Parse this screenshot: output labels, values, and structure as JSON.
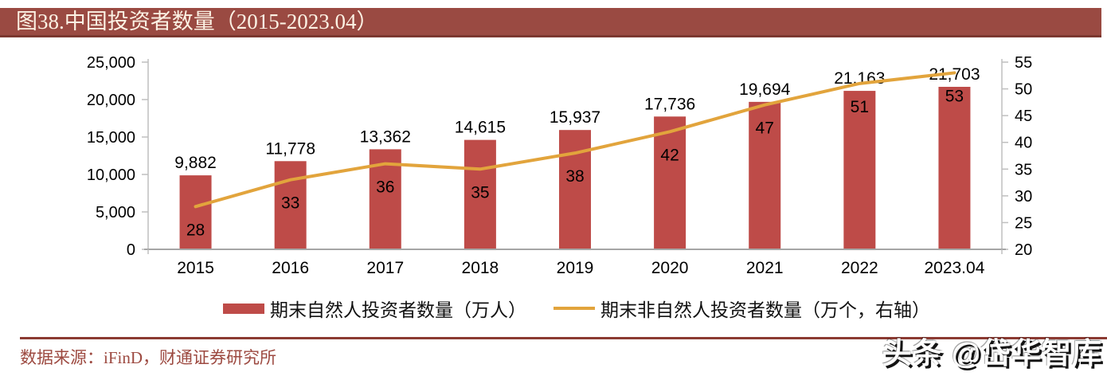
{
  "title": {
    "label": "图38.中国投资者数量（2015-2023.04）"
  },
  "colors": {
    "title_bar_bg": "#9a4a42",
    "title_bar_shadow": "#7b372f",
    "title_text": "#fcf2e4",
    "bar": "#be4b48",
    "line": "#e2a43c",
    "axis_line": "#bfbfbf",
    "x_axis_line": "#a6a6a6",
    "data_label": "#000000",
    "separator": "#8b3a32",
    "source_text": "#9d4a41"
  },
  "chart_data": {
    "type": "bar",
    "subtype": "bar+line dual axis",
    "title": "图38.中国投资者数量（2015-2023.04）",
    "categories": [
      "2015",
      "2016",
      "2017",
      "2018",
      "2019",
      "2020",
      "2021",
      "2022",
      "2023.04"
    ],
    "series": [
      {
        "name": "期末自然人投资者数量（万人）",
        "type": "bar",
        "axis": "left",
        "values": [
          9882,
          11778,
          13362,
          14615,
          15937,
          17736,
          19694,
          21163,
          21703
        ],
        "labels": [
          "9,882",
          "11,778",
          "13,362",
          "14,615",
          "15,937",
          "17,736",
          "19,694",
          "21,163",
          "21,703"
        ]
      },
      {
        "name": "期末非自然人投资者数量（万个，右轴）",
        "type": "line",
        "axis": "right",
        "values": [
          28,
          33,
          36,
          35,
          38,
          42,
          47,
          51,
          53
        ],
        "labels": [
          "28",
          "33",
          "36",
          "35",
          "38",
          "42",
          "47",
          "51",
          "53"
        ]
      }
    ],
    "left_axis": {
      "min": 0,
      "max": 25000,
      "step": 5000,
      "tick_labels": [
        "0",
        "5,000",
        "10,000",
        "15,000",
        "20,000",
        "25,000"
      ]
    },
    "right_axis": {
      "min": 20,
      "max": 55,
      "step": 5,
      "tick_labels": [
        "20",
        "25",
        "30",
        "35",
        "40",
        "45",
        "50",
        "55"
      ]
    },
    "grid": false,
    "legend_position": "bottom"
  },
  "source": {
    "label": "数据来源：iFinD，财通证券研究所"
  },
  "watermark": {
    "label": "头条 @岱华智库"
  }
}
